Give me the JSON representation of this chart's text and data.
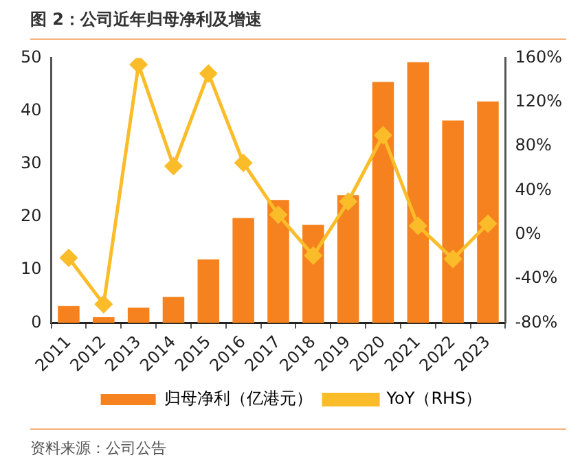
{
  "chart_data": {
    "type": "bar",
    "title": "图 2：公司近年归母净利及增速",
    "categories": [
      "2011",
      "2012",
      "2013",
      "2014",
      "2015",
      "2016",
      "2017",
      "2018",
      "2019",
      "2020",
      "2021",
      "2022",
      "2023"
    ],
    "series": [
      {
        "name": "归母净利（亿港元）",
        "color": "#f5821f",
        "values": [
          3.2,
          1.1,
          2.9,
          4.9,
          12.0,
          19.8,
          23.2,
          18.5,
          24.1,
          45.5,
          49.2,
          38.2,
          41.8
        ]
      },
      {
        "name": "YoY（RHS）",
        "type": "line",
        "axis": "y2",
        "color": "#fbbc2a",
        "marker": "diamond",
        "values": [
          -21,
          -63,
          154,
          62,
          146,
          65,
          18,
          -19,
          30,
          90,
          8,
          -22,
          10
        ]
      }
    ],
    "ylim": [
      0,
      50
    ],
    "yticks": [
      0,
      10,
      20,
      30,
      40,
      50
    ],
    "y2lim": [
      -80,
      160
    ],
    "y2ticks": [
      {
        "value": -80,
        "label": "-80%"
      },
      {
        "value": -40,
        "label": "-40%"
      },
      {
        "value": 0,
        "label": "0%"
      },
      {
        "value": 40,
        "label": "40%"
      },
      {
        "value": 80,
        "label": "80%"
      },
      {
        "value": 120,
        "label": "120%"
      },
      {
        "value": 160,
        "label": "160%"
      }
    ],
    "grid": false,
    "legend": "bottom",
    "annotations": [
      "资料来源：公司公告"
    ]
  }
}
